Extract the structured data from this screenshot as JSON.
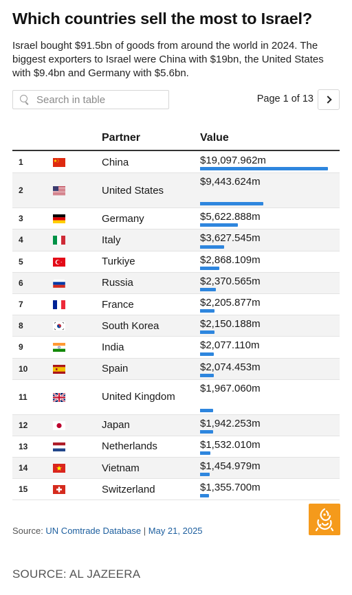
{
  "title": "Which countries sell the most to Israel?",
  "subtitle": "Israel bought $91.5bn of goods from around the world in 2024. The biggest exporters to Israel were China with $19bn, the United States with $9.4bn and Germany with $5.6bn.",
  "search": {
    "placeholder": "Search in table",
    "value": ""
  },
  "pagination": {
    "label": "Page 1 of 13"
  },
  "chart_data": {
    "type": "table",
    "columns": [
      "",
      "",
      "Partner",
      "Value"
    ],
    "value_unit": "m",
    "rows": [
      {
        "rank": "1",
        "flag": "china-flag-icon",
        "partner": "China",
        "value_label": "$19,097.962m",
        "value": 19097.962
      },
      {
        "rank": "2",
        "flag": "united-states-flag-icon",
        "partner": "United States",
        "value_label": "$9,443.624m",
        "value": 9443.624
      },
      {
        "rank": "3",
        "flag": "germany-flag-icon",
        "partner": "Germany",
        "value_label": "$5,622.888m",
        "value": 5622.888
      },
      {
        "rank": "4",
        "flag": "italy-flag-icon",
        "partner": "Italy",
        "value_label": "$3,627.545m",
        "value": 3627.545
      },
      {
        "rank": "5",
        "flag": "turkiye-flag-icon",
        "partner": "Turkiye",
        "value_label": "$2,868.109m",
        "value": 2868.109
      },
      {
        "rank": "6",
        "flag": "russia-flag-icon",
        "partner": "Russia",
        "value_label": "$2,370.565m",
        "value": 2370.565
      },
      {
        "rank": "7",
        "flag": "france-flag-icon",
        "partner": "France",
        "value_label": "$2,205.877m",
        "value": 2205.877
      },
      {
        "rank": "8",
        "flag": "south-korea-flag-icon",
        "partner": "South Korea",
        "value_label": "$2,150.188m",
        "value": 2150.188
      },
      {
        "rank": "9",
        "flag": "india-flag-icon",
        "partner": "India",
        "value_label": "$2,077.110m",
        "value": 2077.11
      },
      {
        "rank": "10",
        "flag": "spain-flag-icon",
        "partner": "Spain",
        "value_label": "$2,074.453m",
        "value": 2074.453
      },
      {
        "rank": "11",
        "flag": "united-kingdom-flag-icon",
        "partner": "United Kingdom",
        "value_label": "$1,967.060m",
        "value": 1967.06
      },
      {
        "rank": "12",
        "flag": "japan-flag-icon",
        "partner": "Japan",
        "value_label": "$1,942.253m",
        "value": 1942.253
      },
      {
        "rank": "13",
        "flag": "netherlands-flag-icon",
        "partner": "Netherlands",
        "value_label": "$1,532.010m",
        "value": 1532.01
      },
      {
        "rank": "14",
        "flag": "vietnam-flag-icon",
        "partner": "Vietnam",
        "value_label": "$1,454.979m",
        "value": 1454.979
      },
      {
        "rank": "15",
        "flag": "switzerland-flag-icon",
        "partner": "Switzerland",
        "value_label": "$1,355.700m",
        "value": 1355.7
      }
    ],
    "bar_color": "#2e86de"
  },
  "source": {
    "prefix": "Source: ",
    "link": "UN Comtrade Database",
    "separator": " | ",
    "date": "May 21, 2025"
  },
  "logo": {
    "name": "al-jazeera-logo-icon",
    "color": "#f59a1b"
  },
  "footer": "SOURCE: AL JAZEERA"
}
